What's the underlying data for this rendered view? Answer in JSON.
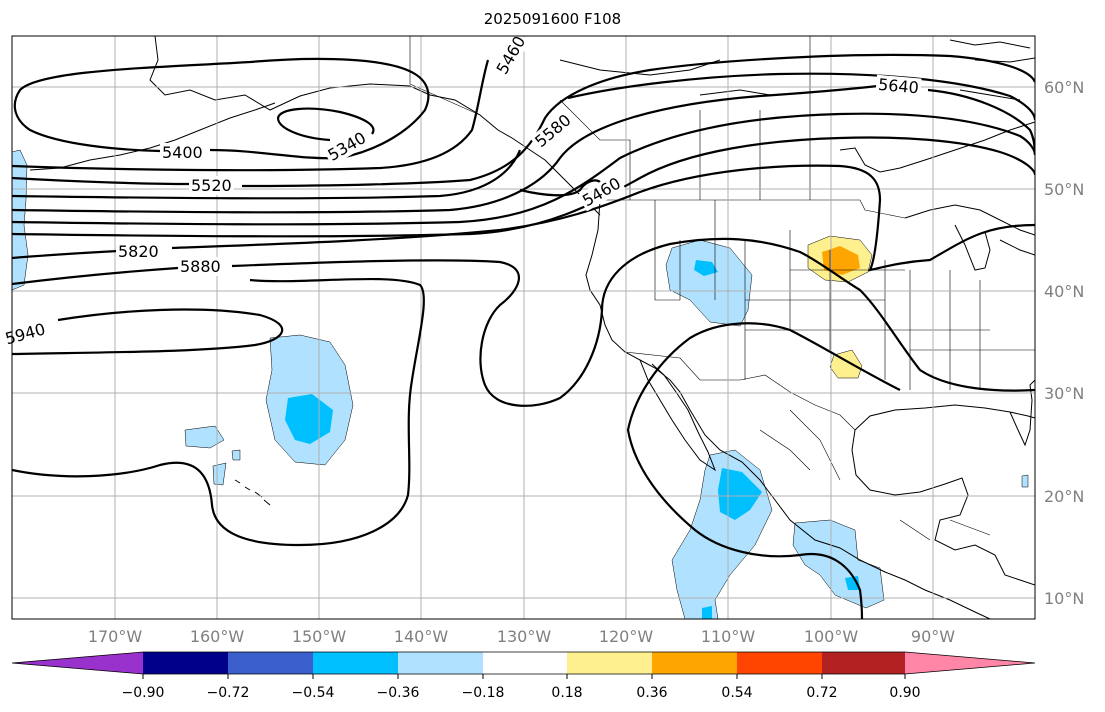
{
  "title": "2025091600 F108",
  "longitude_labels": [
    "170°W",
    "160°W",
    "150°W",
    "140°W",
    "130°W",
    "120°W",
    "110°W",
    "100°W",
    "90°W"
  ],
  "latitude_labels": [
    "60°N",
    "50°N",
    "40°N",
    "30°N",
    "20°N",
    "10°N"
  ],
  "contour_labels": [
    "5460",
    "5340",
    "5400",
    "5520",
    "5580",
    "5460",
    "5640",
    "5820",
    "5880",
    "5940"
  ],
  "colorbar": {
    "colors": [
      "#9932cc",
      "#00008b",
      "#3a5fcd",
      "#00bfff",
      "#b0e2ff",
      "#ffffff",
      "#fff08f",
      "#ffa500",
      "#ff4500",
      "#b22222",
      "#ff86a6"
    ],
    "tick_labels": [
      "−0.90",
      "−0.72",
      "−0.54",
      "−0.36",
      "−0.18",
      "0.18",
      "0.36",
      "0.54",
      "0.72",
      "0.90"
    ]
  },
  "colors": {
    "contour": "#000000",
    "grid": "#b0b0b0",
    "axis_text": "#808080",
    "neg_light": "#b0e2ff",
    "neg_mid": "#00bfff",
    "pos_light": "#fff08f",
    "pos_mid": "#ffa500"
  }
}
